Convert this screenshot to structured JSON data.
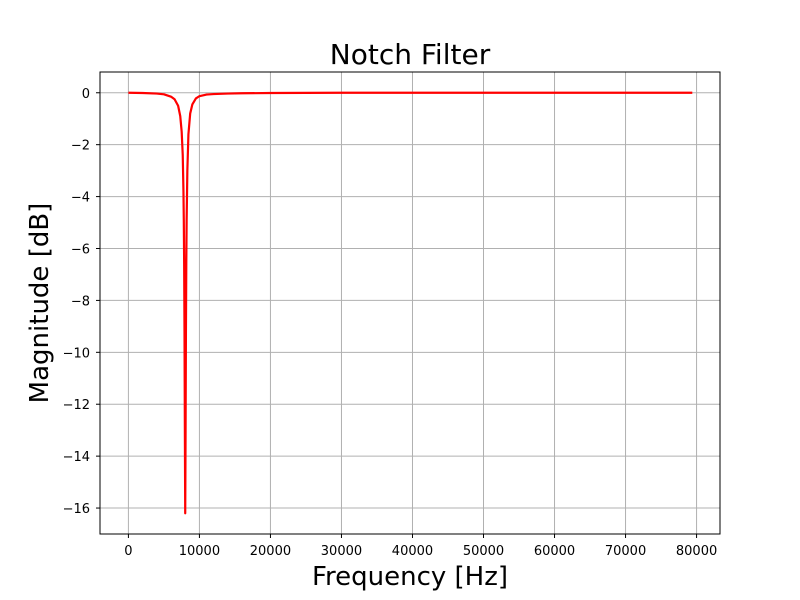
{
  "chart_data": {
    "type": "line",
    "title": "Notch Filter",
    "xlabel": "Frequency [Hz]",
    "ylabel": "Magnitude [dB]",
    "xlim": [
      -4000,
      83300
    ],
    "ylim": [
      -17,
      0.8
    ],
    "xticks": [
      0,
      10000,
      20000,
      30000,
      40000,
      50000,
      60000,
      70000,
      80000
    ],
    "xtick_labels": [
      "0",
      "10000",
      "20000",
      "30000",
      "40000",
      "50000",
      "60000",
      "70000",
      "80000"
    ],
    "yticks": [
      0,
      -2,
      -4,
      -6,
      -8,
      -10,
      -12,
      -14,
      -16
    ],
    "ytick_labels": [
      "0",
      "−2",
      "−4",
      "−6",
      "−8",
      "−10",
      "−12",
      "−14",
      "−16"
    ],
    "grid": true,
    "series": [
      {
        "color": "#ff0000",
        "x": [
          0,
          2000,
          4000,
          5000,
          6000,
          6500,
          7000,
          7300,
          7500,
          7650,
          7750,
          7800,
          7850,
          7900,
          7950,
          8000,
          8050,
          8100,
          8150,
          8200,
          8300,
          8450,
          8700,
          9000,
          9500,
          10000,
          11000,
          12000,
          14000,
          16000,
          20000,
          30000,
          40000,
          50000,
          60000,
          70000,
          79400
        ],
        "y": [
          0,
          -0.01,
          -0.03,
          -0.06,
          -0.15,
          -0.25,
          -0.5,
          -0.9,
          -1.5,
          -2.4,
          -3.8,
          -4.9,
          -6.6,
          -9.2,
          -13.0,
          -16.2,
          -13.0,
          -9.2,
          -6.6,
          -4.9,
          -3.0,
          -1.6,
          -0.8,
          -0.45,
          -0.22,
          -0.13,
          -0.07,
          -0.05,
          -0.03,
          -0.02,
          -0.01,
          0,
          0,
          0,
          0,
          0,
          0
        ]
      }
    ]
  }
}
